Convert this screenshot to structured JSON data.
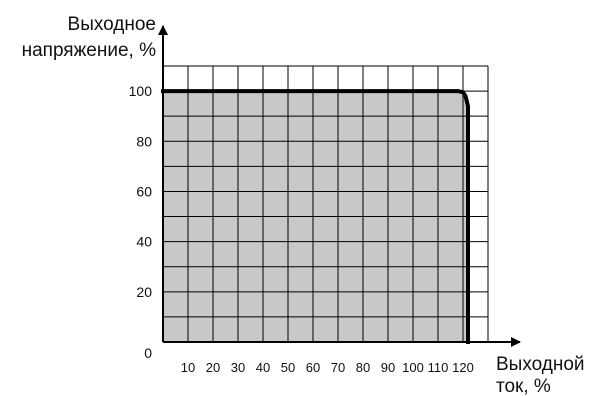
{
  "chart_data": {
    "type": "line",
    "ylabel_lines": [
      "Выходное",
      "напряжение, %"
    ],
    "xlabel_lines": [
      "Выходной",
      "ток, %"
    ],
    "xticks": [
      "10",
      "20",
      "30",
      "40",
      "50",
      "60",
      "70",
      "80",
      "90",
      "100",
      "110",
      "120"
    ],
    "yticks": [
      "20",
      "40",
      "60",
      "80",
      "100"
    ],
    "origin_label": "0",
    "xlim": [
      0,
      130
    ],
    "ylim": [
      0,
      110
    ],
    "grid": true,
    "series": [
      {
        "x": [
          0,
          110,
          118,
          120,
          121,
          122,
          122
        ],
        "y": [
          100,
          100,
          100,
          99.5,
          98,
          94,
          0
        ]
      }
    ],
    "colors": {
      "fill": "#c8c8c8",
      "line": "#000000",
      "grid": "#000000"
    }
  }
}
